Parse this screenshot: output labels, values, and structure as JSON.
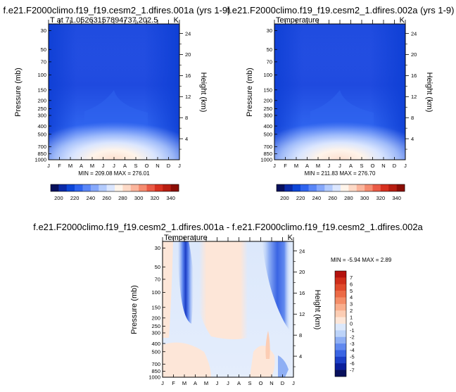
{
  "chart_data": [
    {
      "type": "heatmap",
      "title": "f.e21.F2000climo.f19_f19.cesm2_1.dfires.001a (yrs 1-9)",
      "left_label": "T at 71.05263157894737,202.5",
      "right_label": "K",
      "ylabel": "Pressure (mb)",
      "y2label": "Height (km)",
      "months": [
        "J",
        "F",
        "M",
        "A",
        "M",
        "J",
        "J",
        "A",
        "S",
        "O",
        "N",
        "D",
        "J"
      ],
      "pressure_ticks": [
        30,
        50,
        70,
        100,
        150,
        200,
        250,
        300,
        400,
        500,
        700,
        850,
        1000
      ],
      "height_ticks": [
        24,
        20,
        16,
        12,
        8,
        4
      ],
      "ylim": [
        25,
        1000
      ],
      "stats": "MIN = 209.08  MAX = 276.01",
      "min": 209.08,
      "max": 276.01,
      "colorbar": {
        "orientation": "horizontal",
        "labels": [
          "200",
          "220",
          "240",
          "260",
          "280",
          "300",
          "320",
          "340"
        ],
        "colors": [
          "#08105c",
          "#0a2aa8",
          "#0d46d8",
          "#2f64ef",
          "#5a86f7",
          "#86a8fb",
          "#b3cbfd",
          "#dbe6fe",
          "#fff4ea",
          "#fdd9c6",
          "#fbb59c",
          "#f58b6f",
          "#ea5a45",
          "#d7301f",
          "#b71d10",
          "#8b0d05"
        ]
      }
    },
    {
      "type": "heatmap",
      "title": "f.e21.F2000climo.f19_f19.cesm2_1.dfires.002a (yrs 1-9)",
      "left_label": "Temperature",
      "right_label": "K",
      "ylabel": "Pressure (mb)",
      "y2label": "Height (km)",
      "months": [
        "J",
        "F",
        "M",
        "A",
        "M",
        "J",
        "J",
        "A",
        "S",
        "O",
        "N",
        "D",
        "J"
      ],
      "pressure_ticks": [
        30,
        50,
        70,
        100,
        150,
        200,
        250,
        300,
        400,
        500,
        700,
        850,
        1000
      ],
      "height_ticks": [
        24,
        20,
        16,
        12,
        8,
        4
      ],
      "ylim": [
        25,
        1000
      ],
      "stats": "MIN = 211.83  MAX = 276.70",
      "min": 211.83,
      "max": 276.7,
      "colorbar": {
        "orientation": "horizontal",
        "labels": [
          "200",
          "220",
          "240",
          "260",
          "280",
          "300",
          "320",
          "340"
        ],
        "colors": [
          "#08105c",
          "#0a2aa8",
          "#0d46d8",
          "#2f64ef",
          "#5a86f7",
          "#86a8fb",
          "#b3cbfd",
          "#dbe6fe",
          "#fff4ea",
          "#fdd9c6",
          "#fbb59c",
          "#f58b6f",
          "#ea5a45",
          "#d7301f",
          "#b71d10",
          "#8b0d05"
        ]
      }
    },
    {
      "type": "heatmap",
      "title": "f.e21.F2000climo.f19_f19.cesm2_1.dfires.001a - f.e21.F2000climo.f19_f19.cesm2_1.dfires.002a",
      "left_label": "Temperature",
      "right_label": "K",
      "ylabel": "Pressure (mb)",
      "y2label": "Height (km)",
      "months": [
        "J",
        "F",
        "M",
        "A",
        "M",
        "J",
        "J",
        "A",
        "S",
        "O",
        "N",
        "D",
        "J"
      ],
      "pressure_ticks": [
        30,
        50,
        70,
        100,
        150,
        200,
        250,
        300,
        400,
        500,
        700,
        850,
        1000
      ],
      "height_ticks": [
        24,
        20,
        16,
        12,
        8,
        4
      ],
      "ylim": [
        25,
        1000
      ],
      "stats": "MIN = -5.94  MAX =   2.89",
      "min": -5.94,
      "max": 2.89,
      "colorbar": {
        "orientation": "vertical",
        "labels": [
          "7",
          "6",
          "5",
          "4",
          "3",
          "2",
          "1",
          "0",
          "-1",
          "-2",
          "-3",
          "-4",
          "-5",
          "-6",
          "-7"
        ],
        "colors": [
          "#b4120e",
          "#cf2d1a",
          "#e04a2c",
          "#ec6a46",
          "#f48d68",
          "#f9ae8d",
          "#fccdb4",
          "#fde6d8",
          "#dce8fb",
          "#bcd3f9",
          "#8faff4",
          "#6189ef",
          "#3a64e3",
          "#1c3fc7",
          "#0a1e9a",
          "#08105c"
        ]
      }
    }
  ]
}
